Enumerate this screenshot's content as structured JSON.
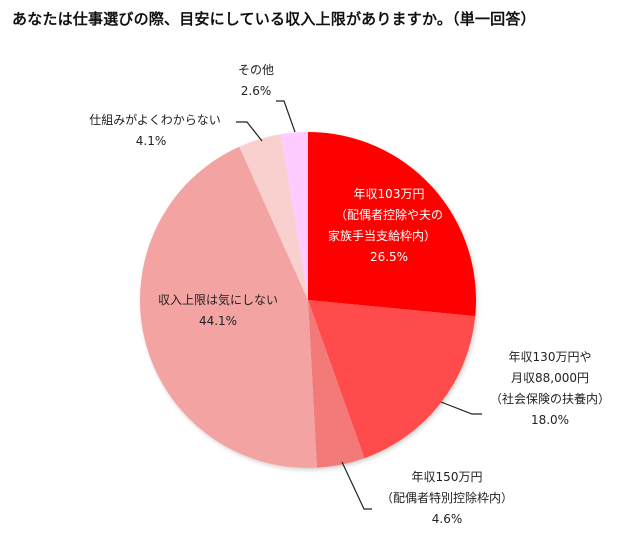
{
  "chart_data": {
    "type": "pie",
    "title": "あなたは仕事選びの際、目安にしている収入上限がありますか。（単一回答）",
    "start_angle_deg": 0,
    "direction": "clockwise",
    "slices": [
      {
        "label": "年収103万円（配偶者控除や夫の家族手当支給枠内）",
        "lines": [
          "年収103万円",
          "（配偶者控除や夫の",
          "家族手当支給枠内）"
        ],
        "value": 26.5,
        "value_label": "26.5%",
        "color": "#FF0000"
      },
      {
        "label": "年収130万円や月収88,000円（社会保険の扶養内）",
        "lines": [
          "年収130万円や",
          "月収88,000円",
          "（社会保険の扶養内）"
        ],
        "value": 18.0,
        "value_label": "18.0%",
        "color": "#FF4B4B"
      },
      {
        "label": "年収150万円（配偶者特別控除枠内）",
        "lines": [
          "年収150万円",
          "（配偶者特別控除枠内）"
        ],
        "value": 4.6,
        "value_label": "4.6%",
        "color": "#F47A7A"
      },
      {
        "label": "収入上限は気にしない",
        "lines": [
          "収入上限は気にしない"
        ],
        "value": 44.1,
        "value_label": "44.1%",
        "color": "#F4A3A3"
      },
      {
        "label": "仕組みがよくわからない",
        "lines": [
          "仕組みがよくわからない"
        ],
        "value": 4.1,
        "value_label": "4.1%",
        "color": "#F8D0CE"
      },
      {
        "label": "その他",
        "lines": [
          "その他"
        ],
        "value": 2.6,
        "value_label": "2.6%",
        "color": "#FFCCFF"
      }
    ]
  },
  "labels": {
    "s0": {
      "l1": "年収103万円",
      "l2": "（配偶者控除や夫の",
      "l3": "家族手当支給枠内）",
      "pct": "26.5%"
    },
    "s1": {
      "l1": "年収130万円や",
      "l2": "月収88,000円",
      "l3": "（社会保険の扶養内）",
      "pct": "18.0%"
    },
    "s2": {
      "l1": "年収150万円",
      "l2": "（配偶者特別控除枠内）",
      "pct": "4.6%"
    },
    "s3": {
      "l1": "収入上限は気にしない",
      "pct": "44.1%"
    },
    "s4": {
      "l1": "仕組みがよくわからない",
      "pct": "4.1%"
    },
    "s5": {
      "l1": "その他",
      "pct": "2.6%"
    }
  }
}
